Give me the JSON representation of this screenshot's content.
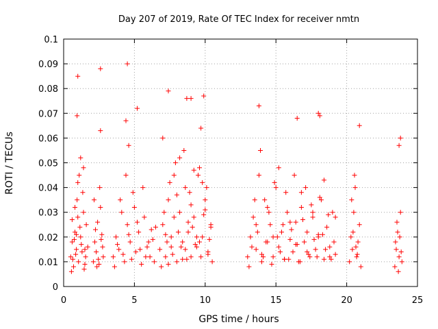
{
  "chart_data": {
    "type": "scatter",
    "title": "Day 207 of 2019, Rate Of TEC Index for receiver nmtn",
    "xlabel": "GPS time / hours",
    "ylabel": "ROTI / TECUs",
    "xlim": [
      0,
      25
    ],
    "ylim": [
      0,
      0.1
    ],
    "xticks": [
      0,
      5,
      10,
      15,
      20,
      25
    ],
    "xtick_labels": [
      "0",
      "5",
      "10",
      "15",
      "20",
      "25"
    ],
    "yticks": [
      0,
      0.01,
      0.02,
      0.03,
      0.04,
      0.05,
      0.06,
      0.07,
      0.08,
      0.09,
      0.1
    ],
    "ytick_labels": [
      "0",
      "0.01",
      "0.02",
      "0.03",
      "0.04",
      "0.05",
      "0.06",
      "0.07",
      "0.08",
      "0.09",
      "0.1"
    ],
    "grid": true,
    "marker": "+",
    "color": "#ff0000",
    "series": [
      {
        "name": "",
        "x": [
          0.5,
          0.6,
          0.7,
          0.8,
          0.9,
          0.95,
          1.0,
          1.05,
          1.1,
          1.2,
          1.3,
          1.4,
          1.5,
          1.6,
          1.7,
          0.55,
          0.65,
          0.75,
          0.85,
          1.15,
          1.25,
          1.35,
          1.45,
          1.55,
          0.6,
          0.8,
          0.9,
          1.0,
          1.2,
          1.4,
          1.5,
          2.1,
          2.2,
          2.3,
          2.4,
          2.5,
          2.6,
          2.7,
          2.8,
          2.15,
          2.35,
          2.55,
          2.75,
          2.25,
          2.45,
          2.65,
          3.5,
          3.7,
          3.9,
          4.1,
          4.3,
          4.5,
          4.7,
          4.9,
          5.1,
          5.3,
          5.5,
          5.7,
          5.9,
          6.1,
          6.3,
          6.5,
          3.6,
          3.8,
          4.0,
          4.2,
          4.4,
          4.6,
          4.8,
          5.0,
          5.2,
          5.4,
          5.6,
          5.8,
          6.0,
          6.2,
          6.4,
          6.8,
          7.0,
          7.2,
          7.4,
          7.6,
          7.8,
          8.0,
          8.2,
          8.4,
          8.6,
          8.8,
          9.0,
          9.2,
          9.4,
          9.6,
          9.8,
          10.0,
          10.2,
          10.4,
          6.9,
          7.1,
          7.3,
          7.5,
          7.7,
          7.9,
          8.1,
          8.3,
          8.5,
          8.7,
          8.9,
          9.1,
          9.3,
          9.5,
          9.7,
          9.9,
          10.1,
          10.3,
          10.5,
          7.0,
          7.4,
          7.8,
          8.2,
          8.6,
          9.0,
          9.4,
          9.8,
          10.2,
          7.2,
          7.6,
          8.0,
          8.4,
          8.8,
          9.2,
          9.6,
          10.0,
          10.4,
          13.0,
          13.2,
          13.4,
          13.6,
          13.8,
          14.0,
          14.2,
          14.4,
          14.6,
          14.8,
          15.0,
          15.2,
          15.4,
          15.6,
          15.8,
          16.0,
          16.2,
          16.4,
          16.6,
          16.8,
          17.0,
          17.2,
          17.4,
          17.6,
          17.8,
          18.0,
          18.2,
          18.4,
          18.6,
          18.8,
          19.0,
          19.2,
          13.1,
          13.3,
          13.5,
          13.7,
          13.9,
          14.1,
          14.3,
          14.5,
          14.7,
          14.9,
          15.1,
          15.3,
          15.5,
          15.7,
          15.9,
          16.1,
          16.3,
          16.5,
          16.7,
          16.9,
          17.1,
          17.3,
          17.5,
          17.7,
          17.9,
          18.1,
          18.3,
          18.5,
          18.7,
          18.9,
          19.1,
          13.6,
          14.0,
          14.4,
          14.8,
          15.2,
          15.6,
          16.0,
          16.4,
          16.8,
          17.2,
          17.6,
          18.0,
          18.4,
          18.8,
          19.2,
          20.2,
          20.3,
          20.4,
          20.5,
          20.6,
          20.7,
          20.8,
          20.9,
          21.0,
          20.35,
          20.55,
          20.75,
          20.45,
          20.65,
          23.4,
          23.5,
          23.6,
          23.7,
          23.8,
          23.9,
          23.45,
          23.55,
          23.65,
          23.75,
          23.85,
          1.0,
          2.6,
          4.5,
          0.95,
          4.4,
          5.2,
          7.4,
          8.7,
          9.0,
          9.9,
          13.8,
          16.5,
          18.0,
          20.9,
          23.8,
          2.6,
          4.6,
          9.7,
          18.1,
          23.7
        ],
        "y": [
          0.012,
          0.018,
          0.008,
          0.022,
          0.015,
          0.035,
          0.028,
          0.01,
          0.045,
          0.02,
          0.014,
          0.03,
          0.009,
          0.025,
          0.016,
          0.006,
          0.011,
          0.019,
          0.013,
          0.024,
          0.017,
          0.038,
          0.007,
          0.012,
          0.027,
          0.032,
          0.021,
          0.042,
          0.052,
          0.048,
          0.015,
          0.01,
          0.018,
          0.014,
          0.026,
          0.009,
          0.032,
          0.021,
          0.012,
          0.035,
          0.008,
          0.04,
          0.016,
          0.023,
          0.011,
          0.019,
          0.012,
          0.02,
          0.015,
          0.03,
          0.01,
          0.025,
          0.018,
          0.038,
          0.014,
          0.022,
          0.009,
          0.028,
          0.016,
          0.012,
          0.019,
          0.024,
          0.008,
          0.017,
          0.035,
          0.013,
          0.045,
          0.021,
          0.011,
          0.032,
          0.026,
          0.015,
          0.04,
          0.012,
          0.018,
          0.023,
          0.01,
          0.015,
          0.025,
          0.012,
          0.035,
          0.02,
          0.045,
          0.01,
          0.03,
          0.018,
          0.04,
          0.022,
          0.012,
          0.028,
          0.016,
          0.048,
          0.02,
          0.035,
          0.014,
          0.025,
          0.008,
          0.03,
          0.018,
          0.042,
          0.013,
          0.05,
          0.022,
          0.016,
          0.055,
          0.011,
          0.038,
          0.024,
          0.017,
          0.045,
          0.012,
          0.029,
          0.04,
          0.019,
          0.01,
          0.06,
          0.009,
          0.028,
          0.052,
          0.015,
          0.033,
          0.02,
          0.042,
          0.013,
          0.021,
          0.016,
          0.037,
          0.011,
          0.026,
          0.047,
          0.018,
          0.031,
          0.024,
          0.012,
          0.02,
          0.028,
          0.015,
          0.045,
          0.01,
          0.035,
          0.018,
          0.025,
          0.012,
          0.04,
          0.016,
          0.022,
          0.011,
          0.03,
          0.019,
          0.014,
          0.026,
          0.01,
          0.032,
          0.018,
          0.022,
          0.012,
          0.028,
          0.015,
          0.02,
          0.035,
          0.011,
          0.024,
          0.016,
          0.03,
          0.013,
          0.008,
          0.016,
          0.035,
          0.022,
          0.055,
          0.012,
          0.018,
          0.03,
          0.009,
          0.042,
          0.02,
          0.014,
          0.025,
          0.038,
          0.011,
          0.023,
          0.045,
          0.017,
          0.01,
          0.027,
          0.04,
          0.013,
          0.033,
          0.019,
          0.012,
          0.036,
          0.021,
          0.015,
          0.029,
          0.011,
          0.018,
          0.025,
          0.013,
          0.032,
          0.02,
          0.048,
          0.011,
          0.026,
          0.017,
          0.038,
          0.014,
          0.03,
          0.021,
          0.043,
          0.012,
          0.028,
          0.01,
          0.02,
          0.015,
          0.03,
          0.04,
          0.012,
          0.018,
          0.025,
          0.008,
          0.035,
          0.045,
          0.013,
          0.022,
          0.016,
          0.008,
          0.015,
          0.022,
          0.012,
          0.03,
          0.01,
          0.018,
          0.026,
          0.006,
          0.02,
          0.014,
          0.085,
          0.088,
          0.09,
          0.069,
          0.067,
          0.072,
          0.079,
          0.076,
          0.076,
          0.077,
          0.073,
          0.068,
          0.07,
          0.065,
          0.06,
          0.063,
          0.057,
          0.064,
          0.069,
          0.057
        ]
      }
    ]
  }
}
